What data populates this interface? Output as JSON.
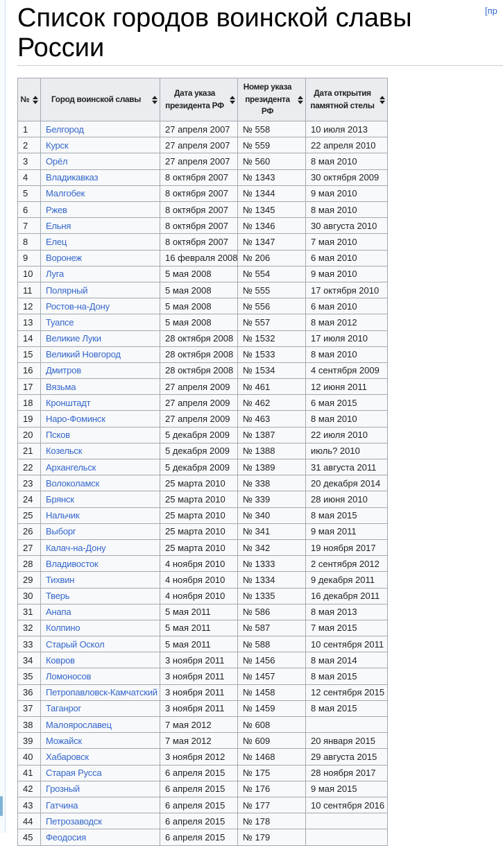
{
  "page": {
    "title": "Список городов воинской славы России",
    "edit_link_label": "[пр"
  },
  "colors": {
    "link_blue": "#3366cc",
    "header_bg": "#eaecf0",
    "row_bg": "#f8f9fa",
    "table_border": "#a2a9b1",
    "edge_line_blue": "#cfe4f0"
  },
  "table": {
    "headers": [
      "№",
      "Город воинской славы",
      "Дата указа президента РФ",
      "Номер указа президента РФ",
      "Дата открытия памятной стелы"
    ],
    "rows": [
      [
        "1",
        "Белгород",
        "27 апреля 2007",
        "№ 558",
        "10 июля 2013"
      ],
      [
        "2",
        "Курск",
        "27 апреля 2007",
        "№ 559",
        "22 апреля 2010"
      ],
      [
        "3",
        "Орёл",
        "27 апреля 2007",
        "№ 560",
        "8 мая 2010"
      ],
      [
        "4",
        "Владикавказ",
        "8 октября 2007",
        "№ 1343",
        "30 октября 2009"
      ],
      [
        "5",
        "Малгобек",
        "8 октября 2007",
        "№ 1344",
        "9 мая 2010"
      ],
      [
        "6",
        "Ржев",
        "8 октября 2007",
        "№ 1345",
        "8 мая 2010"
      ],
      [
        "7",
        "Ельня",
        "8 октября 2007",
        "№ 1346",
        "30 августа 2010"
      ],
      [
        "8",
        "Елец",
        "8 октября 2007",
        "№ 1347",
        "7 мая 2010"
      ],
      [
        "9",
        "Воронеж",
        "16 февраля 2008",
        "№ 206",
        "6 мая 2010"
      ],
      [
        "10",
        "Луга",
        "5 мая 2008",
        "№ 554",
        "9 мая 2010"
      ],
      [
        "11",
        "Полярный",
        "5 мая 2008",
        "№ 555",
        "17 октября 2010"
      ],
      [
        "12",
        "Ростов-на-Дону",
        "5 мая 2008",
        "№ 556",
        "6 мая 2010"
      ],
      [
        "13",
        "Туапсе",
        "5 мая 2008",
        "№ 557",
        "8 мая 2012"
      ],
      [
        "14",
        "Великие Луки",
        "28 октября 2008",
        "№ 1532",
        "17 июля 2010"
      ],
      [
        "15",
        "Великий Новгород",
        "28 октября 2008",
        "№ 1533",
        "8 мая 2010"
      ],
      [
        "16",
        "Дмитров",
        "28 октября 2008",
        "№ 1534",
        "4 сентября 2009"
      ],
      [
        "17",
        "Вязьма",
        "27 апреля 2009",
        "№ 461",
        "12 июня 2011"
      ],
      [
        "18",
        "Кронштадт",
        "27 апреля 2009",
        "№ 462",
        "6 мая 2015"
      ],
      [
        "19",
        "Наро-Фоминск",
        "27 апреля 2009",
        "№ 463",
        "8 мая 2010"
      ],
      [
        "20",
        "Псков",
        "5 декабря 2009",
        "№ 1387",
        "22 июля 2010"
      ],
      [
        "21",
        "Козельск",
        "5 декабря 2009",
        "№ 1388",
        "июль? 2010"
      ],
      [
        "22",
        "Архангельск",
        "5 декабря 2009",
        "№ 1389",
        "31 августа 2011"
      ],
      [
        "23",
        "Волоколамск",
        "25 марта 2010",
        "№ 338",
        "20 декабря 2014"
      ],
      [
        "24",
        "Брянск",
        "25 марта 2010",
        "№ 339",
        "28 июня 2010"
      ],
      [
        "25",
        "Нальчик",
        "25 марта 2010",
        "№ 340",
        "8 мая 2015"
      ],
      [
        "26",
        "Выборг",
        "25 марта 2010",
        "№ 341",
        "9 мая 2011"
      ],
      [
        "27",
        "Калач-на-Дону",
        "25 марта 2010",
        "№ 342",
        "19 ноября 2017"
      ],
      [
        "28",
        "Владивосток",
        "4 ноября 2010",
        "№ 1333",
        "2 сентября 2012"
      ],
      [
        "29",
        "Тихвин",
        "4 ноября 2010",
        "№ 1334",
        "9 декабря 2011"
      ],
      [
        "30",
        "Тверь",
        "4 ноября 2010",
        "№ 1335",
        "16 декабря 2011"
      ],
      [
        "31",
        "Анапа",
        "5 мая 2011",
        "№ 586",
        "8 мая 2013"
      ],
      [
        "32",
        "Колпино",
        "5 мая 2011",
        "№ 587",
        "7 мая 2015"
      ],
      [
        "33",
        "Старый Оскол",
        "5 мая 2011",
        "№ 588",
        "10 сентября 2011"
      ],
      [
        "34",
        "Ковров",
        "3 ноября 2011",
        "№ 1456",
        "8 мая 2014"
      ],
      [
        "35",
        "Ломоносов",
        "3 ноября 2011",
        "№ 1457",
        "8 мая 2015"
      ],
      [
        "36",
        "Петропавловск-Камчатский",
        "3 ноября 2011",
        "№ 1458",
        "12 сентября 2015"
      ],
      [
        "37",
        "Таганрог",
        "3 ноября 2011",
        "№ 1459",
        "8 мая 2015"
      ],
      [
        "38",
        "Малоярославец",
        "7 мая 2012",
        "№ 608",
        ""
      ],
      [
        "39",
        "Можайск",
        "7 мая 2012",
        "№ 609",
        "20 января 2015"
      ],
      [
        "40",
        "Хабаровск",
        "3 ноября 2012",
        "№ 1468",
        "29 августа 2015"
      ],
      [
        "41",
        "Старая Русса",
        "6 апреля 2015",
        "№ 175",
        "28 ноября 2017"
      ],
      [
        "42",
        "Грозный",
        "6 апреля 2015",
        "№ 176",
        "9 мая 2015"
      ],
      [
        "43",
        "Гатчина",
        "6 апреля 2015",
        "№ 177",
        "10 сентября 2016"
      ],
      [
        "44",
        "Петрозаводск",
        "6 апреля 2015",
        "№ 178",
        ""
      ],
      [
        "45",
        "Феодосия",
        "6 апреля 2015",
        "№ 179",
        ""
      ]
    ]
  }
}
